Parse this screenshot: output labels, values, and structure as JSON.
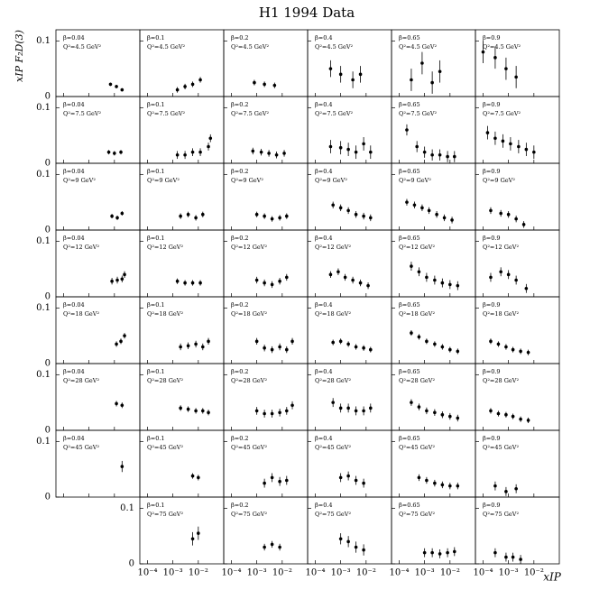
{
  "chart_data": {
    "type": "errorbar-grid",
    "title": "H1 1994 Data",
    "y_label": "xIP F₂D(3)",
    "x_label": "xIP",
    "log_x": true,
    "color": "#000000",
    "xlim": [
      5e-05,
      0.1
    ],
    "ylim": [
      0,
      0.12
    ],
    "xticks": [
      {
        "value": 0.0001,
        "label": "10⁻⁴"
      },
      {
        "value": 0.001,
        "label": "10⁻³"
      },
      {
        "value": 0.01,
        "label": "10⁻²"
      }
    ],
    "yticks": [
      0,
      0.1
    ],
    "betas": [
      "β=0.04",
      "β=0.1",
      "β=0.2",
      "β=0.4",
      "β=0.65",
      "β=0.9"
    ],
    "rows": [
      {
        "q2": "Q²=4.5 GeV²",
        "panels": [
          {
            "x": [
              0.007,
              0.012,
              0.02
            ],
            "values": [
              0.022,
              0.018,
              0.012
            ],
            "error": 0.003
          },
          {
            "x": [
              0.0015,
              0.003,
              0.006,
              0.012
            ],
            "values": [
              0.012,
              0.018,
              0.022,
              0.03
            ],
            "error": 0.005
          },
          {
            "x": [
              0.0008,
              0.002,
              0.005
            ],
            "values": [
              0.025,
              0.022,
              0.02
            ],
            "error": 0.005
          },
          {
            "x": [
              0.0004,
              0.001,
              0.003,
              0.006
            ],
            "values": [
              0.05,
              0.04,
              0.03,
              0.04
            ],
            "error": 0.015
          },
          {
            "x": [
              0.0003,
              0.0008,
              0.002,
              0.004
            ],
            "values": [
              0.03,
              0.06,
              0.025,
              0.045
            ],
            "error": 0.02
          },
          {
            "x": [
              0.0001,
              0.0003,
              0.0008,
              0.002
            ],
            "values": [
              0.08,
              0.07,
              0.05,
              0.035
            ],
            "error": 0.02
          }
        ]
      },
      {
        "q2": "Q²=7.5 GeV²",
        "panels": [
          {
            "x": [
              0.006,
              0.01,
              0.018
            ],
            "values": [
              0.02,
              0.018,
              0.02
            ],
            "error": 0.004
          },
          {
            "x": [
              0.0015,
              0.003,
              0.006,
              0.012,
              0.025,
              0.03
            ],
            "values": [
              0.015,
              0.015,
              0.02,
              0.02,
              0.03,
              0.045
            ],
            "error": 0.007
          },
          {
            "x": [
              0.0007,
              0.0015,
              0.003,
              0.006,
              0.012
            ],
            "values": [
              0.022,
              0.02,
              0.018,
              0.015,
              0.018
            ],
            "error": 0.006
          },
          {
            "x": [
              0.0004,
              0.001,
              0.002,
              0.004,
              0.008,
              0.015
            ],
            "values": [
              0.03,
              0.028,
              0.025,
              0.02,
              0.035,
              0.02
            ],
            "error": 0.012
          },
          {
            "x": [
              0.0002,
              0.0005,
              0.001,
              0.002,
              0.004,
              0.008,
              0.015
            ],
            "values": [
              0.06,
              0.03,
              0.02,
              0.015,
              0.015,
              0.012,
              0.012
            ],
            "error": 0.01
          },
          {
            "x": [
              0.00015,
              0.0003,
              0.0006,
              0.0012,
              0.0025,
              0.005,
              0.01
            ],
            "values": [
              0.055,
              0.045,
              0.04,
              0.035,
              0.03,
              0.025,
              0.02
            ],
            "error": 0.012
          }
        ]
      },
      {
        "q2": "Q²=9 GeV²",
        "panels": [
          {
            "x": [
              0.008,
              0.013,
              0.02
            ],
            "values": [
              0.025,
              0.022,
              0.03
            ],
            "error": 0.004
          },
          {
            "x": [
              0.002,
              0.004,
              0.008,
              0.015
            ],
            "values": [
              0.025,
              0.028,
              0.022,
              0.028
            ],
            "error": 0.005
          },
          {
            "x": [
              0.001,
              0.002,
              0.004,
              0.008,
              0.015
            ],
            "values": [
              0.028,
              0.025,
              0.02,
              0.022,
              0.025
            ],
            "error": 0.005
          },
          {
            "x": [
              0.0005,
              0.001,
              0.002,
              0.004,
              0.008,
              0.015
            ],
            "values": [
              0.045,
              0.04,
              0.035,
              0.028,
              0.025,
              0.022
            ],
            "error": 0.006
          },
          {
            "x": [
              0.0002,
              0.0004,
              0.0008,
              0.0015,
              0.003,
              0.006,
              0.012
            ],
            "values": [
              0.05,
              0.045,
              0.04,
              0.035,
              0.028,
              0.022,
              0.018
            ],
            "error": 0.006
          },
          {
            "x": [
              0.0002,
              0.0005,
              0.001,
              0.002,
              0.004
            ],
            "values": [
              0.035,
              0.03,
              0.028,
              0.02,
              0.01
            ],
            "error": 0.006
          }
        ]
      },
      {
        "q2": "Q²=12 GeV²",
        "panels": [
          {
            "x": [
              0.008,
              0.013,
              0.02,
              0.025
            ],
            "values": [
              0.028,
              0.03,
              0.032,
              0.04
            ],
            "error": 0.006
          },
          {
            "x": [
              0.0015,
              0.003,
              0.006,
              0.012
            ],
            "values": [
              0.028,
              0.025,
              0.025,
              0.025
            ],
            "error": 0.005
          },
          {
            "x": [
              0.001,
              0.002,
              0.004,
              0.008,
              0.015
            ],
            "values": [
              0.03,
              0.025,
              0.022,
              0.028,
              0.035
            ],
            "error": 0.006
          },
          {
            "x": [
              0.0004,
              0.0008,
              0.0015,
              0.003,
              0.006,
              0.012
            ],
            "values": [
              0.04,
              0.045,
              0.035,
              0.03,
              0.025,
              0.02
            ],
            "error": 0.006
          },
          {
            "x": [
              0.0003,
              0.0006,
              0.0012,
              0.0025,
              0.005,
              0.01,
              0.02
            ],
            "values": [
              0.055,
              0.045,
              0.035,
              0.03,
              0.025,
              0.022,
              0.02
            ],
            "error": 0.008
          },
          {
            "x": [
              0.0002,
              0.0005,
              0.001,
              0.002,
              0.005
            ],
            "values": [
              0.035,
              0.045,
              0.04,
              0.03,
              0.015
            ],
            "error": 0.008
          }
        ]
      },
      {
        "q2": "Q²=18 GeV²",
        "panels": [
          {
            "x": [
              0.012,
              0.018,
              0.025
            ],
            "values": [
              0.035,
              0.04,
              0.05
            ],
            "error": 0.005
          },
          {
            "x": [
              0.002,
              0.004,
              0.008,
              0.015,
              0.025
            ],
            "values": [
              0.03,
              0.032,
              0.035,
              0.03,
              0.04
            ],
            "error": 0.006
          },
          {
            "x": [
              0.001,
              0.002,
              0.004,
              0.008,
              0.015,
              0.025
            ],
            "values": [
              0.04,
              0.028,
              0.025,
              0.03,
              0.025,
              0.04
            ],
            "error": 0.006
          },
          {
            "x": [
              0.0005,
              0.001,
              0.002,
              0.004,
              0.008,
              0.015
            ],
            "values": [
              0.038,
              0.04,
              0.035,
              0.03,
              0.028,
              0.025
            ],
            "error": 0.005
          },
          {
            "x": [
              0.0003,
              0.0006,
              0.0012,
              0.0025,
              0.005,
              0.01,
              0.02
            ],
            "values": [
              0.055,
              0.048,
              0.04,
              0.035,
              0.03,
              0.025,
              0.022
            ],
            "error": 0.005
          },
          {
            "x": [
              0.0002,
              0.0004,
              0.0008,
              0.0015,
              0.003,
              0.006
            ],
            "values": [
              0.04,
              0.035,
              0.03,
              0.025,
              0.022,
              0.02
            ],
            "error": 0.005
          }
        ]
      },
      {
        "q2": "Q²=28 GeV²",
        "panels": [
          {
            "x": [
              0.012,
              0.02
            ],
            "values": [
              0.048,
              0.045
            ],
            "error": 0.005
          },
          {
            "x": [
              0.002,
              0.004,
              0.008,
              0.015,
              0.025
            ],
            "values": [
              0.04,
              0.038,
              0.035,
              0.035,
              0.032
            ],
            "error": 0.005
          },
          {
            "x": [
              0.001,
              0.002,
              0.004,
              0.008,
              0.015,
              0.025
            ],
            "values": [
              0.035,
              0.03,
              0.03,
              0.032,
              0.035,
              0.045
            ],
            "error": 0.007
          },
          {
            "x": [
              0.0005,
              0.001,
              0.002,
              0.004,
              0.008,
              0.015
            ],
            "values": [
              0.05,
              0.04,
              0.04,
              0.035,
              0.035,
              0.04
            ],
            "error": 0.008
          },
          {
            "x": [
              0.0003,
              0.0006,
              0.0012,
              0.0025,
              0.005,
              0.01,
              0.02
            ],
            "values": [
              0.05,
              0.042,
              0.035,
              0.032,
              0.028,
              0.025,
              0.022
            ],
            "error": 0.006
          },
          {
            "x": [
              0.0002,
              0.0004,
              0.0008,
              0.0015,
              0.003,
              0.006
            ],
            "values": [
              0.035,
              0.03,
              0.028,
              0.025,
              0.02,
              0.018
            ],
            "error": 0.005
          }
        ]
      },
      {
        "q2": "Q²=45 GeV²",
        "panels": [
          {
            "x": [
              0.02
            ],
            "values": [
              0.055
            ],
            "error": 0.01
          },
          {
            "x": [
              0.006,
              0.01
            ],
            "values": [
              0.038,
              0.035
            ],
            "error": 0.005
          },
          {
            "x": [
              0.002,
              0.004,
              0.008,
              0.015
            ],
            "values": [
              0.025,
              0.035,
              0.028,
              0.03
            ],
            "error": 0.008
          },
          {
            "x": [
              0.001,
              0.002,
              0.004,
              0.008
            ],
            "values": [
              0.035,
              0.038,
              0.03,
              0.025
            ],
            "error": 0.008
          },
          {
            "x": [
              0.0006,
              0.0012,
              0.0025,
              0.005,
              0.01,
              0.02
            ],
            "values": [
              0.035,
              0.03,
              0.025,
              0.022,
              0.02,
              0.02
            ],
            "error": 0.006
          },
          {
            "x": [
              0.0003,
              0.0008,
              0.002
            ],
            "values": [
              0.02,
              0.01,
              0.015
            ],
            "error": 0.008
          }
        ]
      },
      {
        "q2": "Q²=75 GeV²",
        "panels": [
          {
            "x": [
              0.006,
              0.01
            ],
            "values": [
              0.045,
              0.055
            ],
            "error": 0.012
          },
          {
            "x": [
              0.002,
              0.004,
              0.008
            ],
            "values": [
              0.03,
              0.035,
              0.03
            ],
            "error": 0.006
          },
          {
            "x": [
              0.001,
              0.002,
              0.004,
              0.008
            ],
            "values": [
              0.045,
              0.04,
              0.03,
              0.025
            ],
            "error": 0.01
          },
          {
            "x": [
              0.001,
              0.002,
              0.004,
              0.008,
              0.015
            ],
            "values": [
              0.02,
              0.02,
              0.018,
              0.02,
              0.022
            ],
            "error": 0.008
          },
          {
            "x": [
              0.0003,
              0.0008,
              0.0015,
              0.003
            ],
            "values": [
              0.02,
              0.012,
              0.012,
              0.008
            ],
            "error": 0.008
          }
        ]
      }
    ]
  }
}
